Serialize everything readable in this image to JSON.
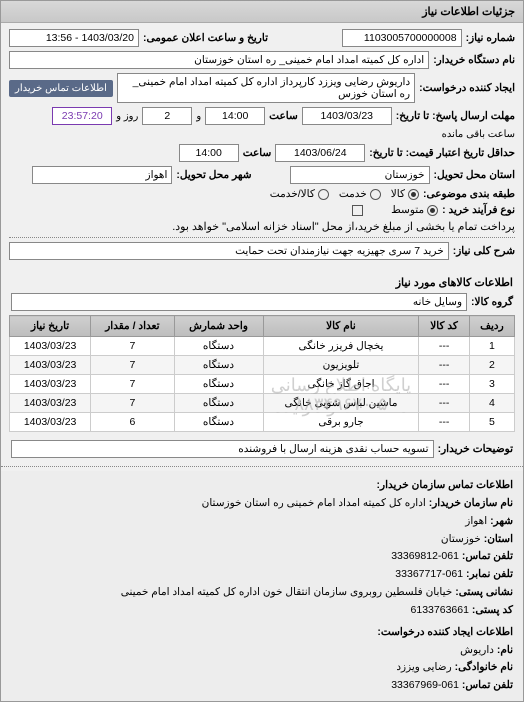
{
  "panel_title": "جزئیات اطلاعات نیاز",
  "header": {
    "req_no_label": "شماره نیاز:",
    "req_no": "1103005700000008",
    "announce_label": "تاریخ و ساعت اعلان عمومی:",
    "announce_value": "1403/03/20 - 13:56",
    "buyer_org_label": "نام دستگاه خریدار:",
    "buyer_org": "اداره کل کمیته امداد امام خمینی_ ره  استان خوزستان",
    "requester_label": "ایجاد کننده درخواست:",
    "requester": "داریوش رضایی ویززد کارپرداز اداره کل کمیته امداد امام خمینی_ ره  استان خوزس",
    "contact_link": "اطلاعات تماس خریدار",
    "deadline_send_label": "مهلت ارسال پاسخ: تا تاریخ:",
    "deadline_send_date": "1403/03/23",
    "time_label": "ساعت",
    "deadline_send_time": "14:00",
    "days_remaining_prefix": "و",
    "days_remaining": "2",
    "days_remaining_suffix": "روز و",
    "time_remaining": "23:57:20",
    "time_remaining_suffix": "ساعت باقی مانده",
    "validity_label": "حداقل تاریخ اعتبار قیمت: تا تاریخ:",
    "validity_date": "1403/06/24",
    "validity_time": "14:00",
    "province_label": "استان محل تحویل:",
    "province": "خوزستان",
    "city_label": "شهر محل تحویل:",
    "city": "اهواز",
    "supply_type_label": "طبقه بندی موضوعی:",
    "supply_goods": "کالا",
    "supply_service": "خدمت",
    "supply_goods_service": "کالا/خدمت",
    "process_label": "نوع فرآیند خرید :",
    "process_mid": "متوسط",
    "process_note": "پرداخت تمام یا بخشی از مبلغ خرید،از محل \"اسناد خزانه اسلامی\" خواهد بود.",
    "need_title_label": "شرح کلی نیاز:",
    "need_title": "خرید 7 سری جهیزیه جهت نیازمندان تحت حمایت"
  },
  "goods": {
    "section_title": "اطلاعات کالاهای مورد نیاز",
    "group_label": "گروه کالا:",
    "group_value": "وسایل خانه",
    "columns": {
      "row": "ردیف",
      "code": "کد کالا",
      "name": "نام کالا",
      "unit": "واحد شمارش",
      "qty": "تعداد / مقدار",
      "date": "تاریخ نیاز"
    },
    "rows": [
      {
        "n": "1",
        "code": "---",
        "name": "یخچال فریزر خانگی",
        "unit": "دستگاه",
        "qty": "7",
        "date": "1403/03/23"
      },
      {
        "n": "2",
        "code": "---",
        "name": "تلویزیون",
        "unit": "دستگاه",
        "qty": "7",
        "date": "1403/03/23"
      },
      {
        "n": "3",
        "code": "---",
        "name": "اجاق گاز خانگی",
        "unit": "دستگاه",
        "qty": "7",
        "date": "1403/03/23"
      },
      {
        "n": "4",
        "code": "---",
        "name": "ماشین لباس شویی خانگی",
        "unit": "دستگاه",
        "qty": "7",
        "date": "1403/03/23"
      },
      {
        "n": "5",
        "code": "---",
        "name": "جارو برقی",
        "unit": "دستگاه",
        "qty": "6",
        "date": "1403/03/23"
      }
    ],
    "watermark1": "پایگاه اطلاع رسانی مناقصات و مزایده",
    "watermark2": "۸۸۳۴۹۶۷۰-۵"
  },
  "buyer_note": {
    "label": "توضیحات خریدار:",
    "text": "تسویه حساب نقدی هزینه ارسال با فروشنده"
  },
  "contact": {
    "section_title": "اطلاعات تماس سازمان خریدار:",
    "org_label": "نام سازمان خریدار:",
    "org": "اداره کل کمیته امداد امام خمینی ره استان خوزستان",
    "city_label": "شهر:",
    "city": "اهواز",
    "province_label": "استان:",
    "province": "خوزستان",
    "phone_label": "تلفن تماس:",
    "phone": "061-33369812",
    "fax_label": "تلفن نمابر:",
    "fax": "061-33367717",
    "address_label": "نشانی پستی:",
    "address": "خیابان فلسطین روبروی سازمان انتقال خون اداره کل کمیته امداد امام خمینی",
    "postcode_label": "کد پستی:",
    "postcode": "6133763661",
    "creator_section": "اطلاعات ایجاد کننده درخواست:",
    "name_label": "نام:",
    "name": "داریوش",
    "surname_label": "نام خانوادگی:",
    "surname": "رضایی ویززد",
    "creator_phone_label": "تلفن تماس:",
    "creator_phone": "061-33367969"
  },
  "colors": {
    "panel_border": "#999999",
    "header_grad_top": "#d8d8d8",
    "header_grad_bot": "#c8c8c8",
    "link_bg": "#5a6a88",
    "purple": "#7a3ab0"
  }
}
